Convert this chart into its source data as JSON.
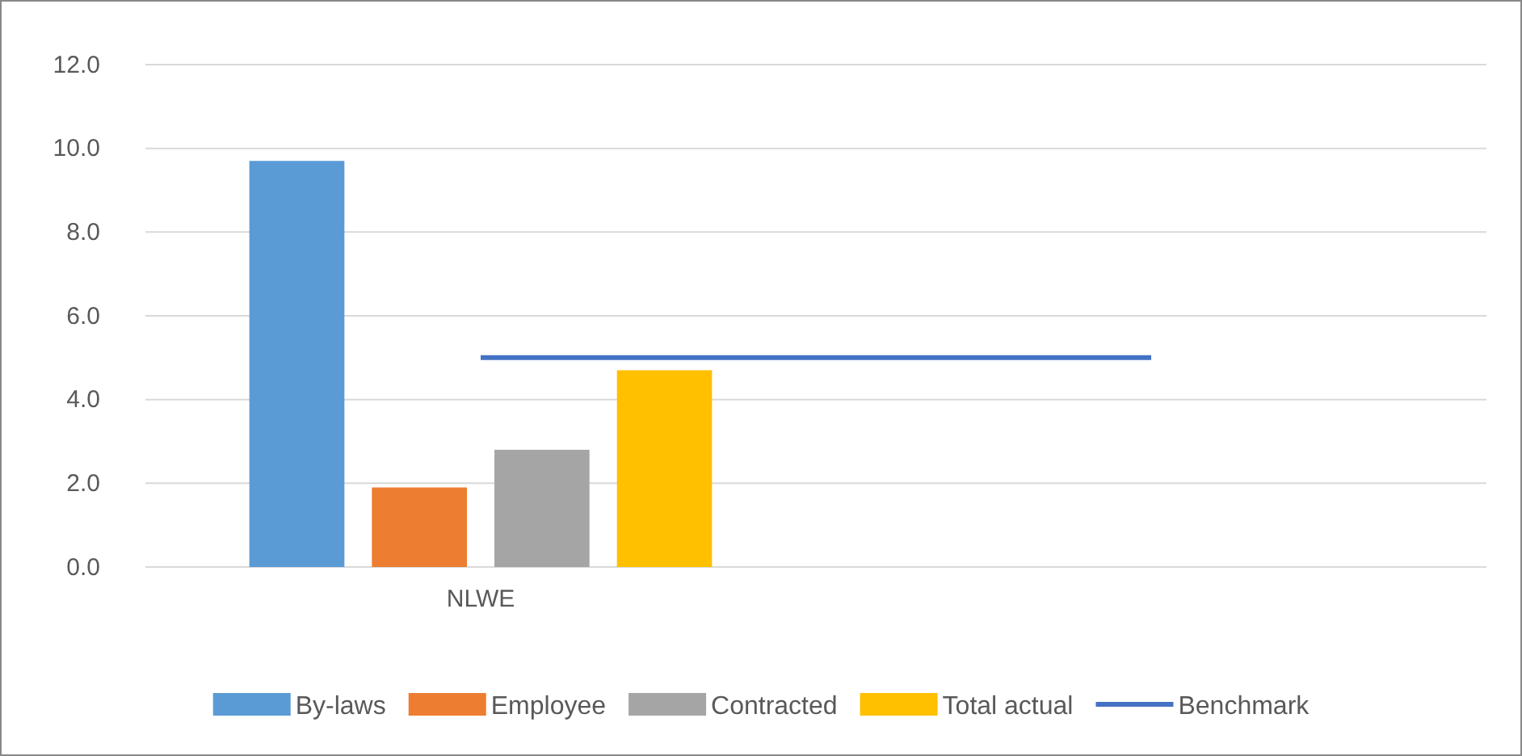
{
  "chart_data": {
    "type": "bar",
    "categories": [
      "NLWE",
      null
    ],
    "series": [
      {
        "name": "By-laws",
        "color": "#5b9bd5",
        "values": [
          9.7,
          null
        ]
      },
      {
        "name": "Employee",
        "color": "#ed7d31",
        "values": [
          1.9,
          null
        ]
      },
      {
        "name": "Contracted",
        "color": "#a5a5a5",
        "values": [
          2.8,
          null
        ]
      },
      {
        "name": "Total actual",
        "color": "#ffc000",
        "values": [
          4.7,
          null
        ]
      },
      {
        "name": "Benchmark",
        "type": "line",
        "color": "#4472c4",
        "values": [
          5.0,
          5.0
        ]
      }
    ],
    "ylim": [
      0,
      12
    ],
    "yticks": [
      {
        "value": 0,
        "label": "0.0"
      },
      {
        "value": 2,
        "label": "2.0"
      },
      {
        "value": 4,
        "label": "4.0"
      },
      {
        "value": 6,
        "label": "6.0"
      },
      {
        "value": 8,
        "label": "8.0"
      },
      {
        "value": 10,
        "label": "10.0"
      },
      {
        "value": 12,
        "label": "12.0"
      }
    ],
    "grid": "y",
    "legend": "bottom"
  }
}
